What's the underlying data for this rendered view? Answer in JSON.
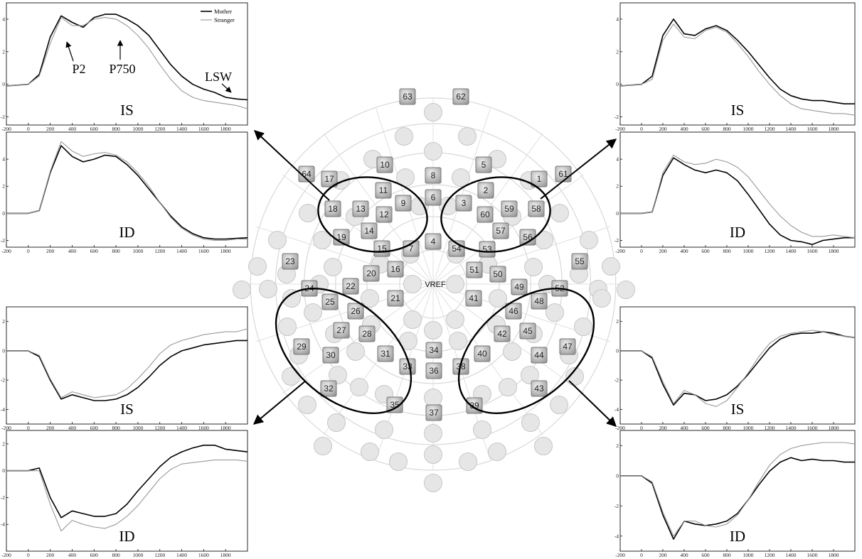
{
  "x_ticks": [
    "-200",
    "0",
    "200",
    "400",
    "600",
    "800",
    "1000",
    "1200",
    "1400",
    "1600",
    "1800"
  ],
  "legend": {
    "mother": "Mother",
    "stranger": "Stranger"
  },
  "annotations": {
    "p2": "P2",
    "p750": "P750",
    "lsw": "LSW"
  },
  "reference_label": "VREF",
  "electrode_labels": [
    "1",
    "2",
    "3",
    "4",
    "5",
    "6",
    "7",
    "8",
    "9",
    "10",
    "11",
    "12",
    "13",
    "14",
    "15",
    "16",
    "17",
    "18",
    "19",
    "20",
    "21",
    "22",
    "23",
    "24",
    "25",
    "26",
    "27",
    "28",
    "29",
    "30",
    "31",
    "32",
    "33",
    "34",
    "35",
    "36",
    "37",
    "38",
    "39",
    "40",
    "41",
    "42",
    "43",
    "44",
    "45",
    "46",
    "47",
    "48",
    "49",
    "50",
    "51",
    "52",
    "53",
    "54",
    "55",
    "56",
    "57",
    "58",
    "59",
    "60",
    "61",
    "62",
    "63",
    "64"
  ],
  "chart_data": [
    {
      "type": "line",
      "panel": "upper-left IS",
      "title": "IS",
      "xlim": [
        -200,
        2000
      ],
      "ylim": [
        -2.5,
        5
      ],
      "y_ticks": [
        -2,
        0,
        2,
        4
      ],
      "x": [
        -200,
        0,
        100,
        200,
        300,
        400,
        500,
        600,
        700,
        800,
        900,
        1000,
        1100,
        1200,
        1300,
        1400,
        1500,
        1600,
        1700,
        1800,
        1900,
        2000
      ],
      "series": [
        {
          "name": "Mother",
          "values": [
            -0.1,
            0,
            0.6,
            2.9,
            4.2,
            3.8,
            3.5,
            4.1,
            4.3,
            4.3,
            4.0,
            3.6,
            3.0,
            2.1,
            1.2,
            0.5,
            0.0,
            -0.3,
            -0.5,
            -0.8,
            -0.9,
            -0.95
          ]
        },
        {
          "name": "Stranger",
          "values": [
            -0.1,
            0,
            0.5,
            2.5,
            4.1,
            3.6,
            3.6,
            4.0,
            4.1,
            4.0,
            3.6,
            3.0,
            2.2,
            1.2,
            0.3,
            -0.4,
            -0.8,
            -1.0,
            -1.1,
            -1.2,
            -1.3,
            -1.5
          ]
        }
      ]
    },
    {
      "type": "line",
      "panel": "upper-left ID",
      "title": "ID",
      "xlim": [
        -200,
        2000
      ],
      "ylim": [
        -2.5,
        6
      ],
      "y_ticks": [
        -2,
        0,
        2,
        4
      ],
      "x": [
        -200,
        0,
        100,
        200,
        300,
        400,
        500,
        600,
        700,
        800,
        900,
        1000,
        1100,
        1200,
        1300,
        1400,
        1500,
        1600,
        1700,
        1800,
        1900,
        2000
      ],
      "series": [
        {
          "name": "Mother",
          "values": [
            0,
            0,
            0.2,
            3.0,
            5.0,
            4.2,
            3.8,
            4.0,
            4.3,
            4.2,
            3.6,
            2.8,
            1.8,
            0.8,
            -0.2,
            -1.0,
            -1.5,
            -1.8,
            -1.9,
            -1.9,
            -1.85,
            -1.8
          ]
        },
        {
          "name": "Stranger",
          "values": [
            0,
            0,
            0.2,
            3.1,
            5.3,
            4.6,
            4.2,
            4.4,
            4.5,
            4.3,
            3.8,
            3.0,
            2.0,
            0.8,
            -0.3,
            -1.1,
            -1.6,
            -1.9,
            -2.0,
            -2.0,
            -1.9,
            -1.9
          ]
        }
      ]
    },
    {
      "type": "line",
      "panel": "upper-right IS",
      "title": "IS",
      "xlim": [
        -200,
        2000
      ],
      "ylim": [
        -2.5,
        5
      ],
      "y_ticks": [
        -2,
        0,
        2,
        4
      ],
      "x": [
        -200,
        0,
        100,
        200,
        300,
        400,
        500,
        600,
        700,
        800,
        900,
        1000,
        1100,
        1200,
        1300,
        1400,
        1500,
        1600,
        1700,
        1800,
        1900,
        2000
      ],
      "series": [
        {
          "name": "Mother",
          "values": [
            -0.1,
            0,
            0.5,
            3.0,
            4.0,
            3.1,
            3.0,
            3.4,
            3.6,
            3.3,
            2.7,
            2.0,
            1.2,
            0.4,
            -0.3,
            -0.7,
            -0.9,
            -1.0,
            -1.0,
            -1.1,
            -1.2,
            -1.2
          ]
        },
        {
          "name": "Stranger",
          "values": [
            -0.1,
            0,
            0.3,
            2.7,
            3.7,
            2.9,
            2.8,
            3.3,
            3.5,
            3.2,
            2.5,
            1.7,
            0.8,
            0.0,
            -0.7,
            -1.2,
            -1.5,
            -1.6,
            -1.7,
            -1.8,
            -1.8,
            -1.9
          ]
        }
      ]
    },
    {
      "type": "line",
      "panel": "upper-right ID",
      "title": "ID",
      "xlim": [
        -200,
        2000
      ],
      "ylim": [
        -2.5,
        6
      ],
      "y_ticks": [
        -2,
        0,
        2,
        4
      ],
      "x": [
        -200,
        0,
        100,
        200,
        300,
        400,
        500,
        600,
        700,
        800,
        900,
        1000,
        1100,
        1200,
        1300,
        1400,
        1500,
        1600,
        1700,
        1800,
        1900,
        2000
      ],
      "series": [
        {
          "name": "Mother",
          "values": [
            0,
            0,
            0.1,
            2.8,
            4.1,
            3.6,
            3.2,
            3.0,
            3.2,
            3.0,
            2.4,
            1.4,
            0.3,
            -0.8,
            -1.6,
            -2.0,
            -2.1,
            -2.3,
            -2.0,
            -1.9,
            -1.8,
            -1.8
          ]
        },
        {
          "name": "Stranger",
          "values": [
            0,
            0,
            0.1,
            3.0,
            4.3,
            3.8,
            3.6,
            3.7,
            4.0,
            3.8,
            3.4,
            2.7,
            1.7,
            0.7,
            -0.2,
            -0.9,
            -1.4,
            -1.7,
            -1.7,
            -1.6,
            -1.7,
            -1.8
          ]
        }
      ]
    },
    {
      "type": "line",
      "panel": "lower-left IS",
      "title": "IS",
      "xlim": [
        -200,
        2000
      ],
      "ylim": [
        -5,
        3
      ],
      "y_ticks": [
        -4,
        -2,
        0,
        2
      ],
      "x": [
        -200,
        0,
        100,
        200,
        300,
        400,
        500,
        600,
        700,
        800,
        900,
        1000,
        1100,
        1200,
        1300,
        1400,
        1500,
        1600,
        1700,
        1800,
        1900,
        2000
      ],
      "series": [
        {
          "name": "Mother",
          "values": [
            0,
            0,
            -0.4,
            -2.0,
            -3.3,
            -3.0,
            -3.2,
            -3.4,
            -3.4,
            -3.3,
            -3.0,
            -2.5,
            -1.8,
            -1.0,
            -0.4,
            0,
            0.2,
            0.4,
            0.5,
            0.6,
            0.7,
            0.7
          ]
        },
        {
          "name": "Stranger",
          "values": [
            0,
            0,
            -0.3,
            -1.9,
            -3.2,
            -2.8,
            -3.0,
            -3.2,
            -3.1,
            -3.0,
            -2.6,
            -1.9,
            -1.1,
            -0.2,
            0.4,
            0.7,
            0.9,
            1.1,
            1.2,
            1.3,
            1.3,
            1.5
          ]
        }
      ]
    },
    {
      "type": "line",
      "panel": "lower-left ID",
      "title": "ID",
      "xlim": [
        -200,
        2000
      ],
      "ylim": [
        -6,
        3
      ],
      "y_ticks": [
        -4,
        -2,
        0,
        2
      ],
      "x": [
        -200,
        0,
        100,
        200,
        300,
        400,
        500,
        600,
        700,
        800,
        900,
        1000,
        1100,
        1200,
        1300,
        1400,
        1500,
        1600,
        1700,
        1800,
        1900,
        2000
      ],
      "series": [
        {
          "name": "Mother",
          "values": [
            0,
            0,
            0.2,
            -2.0,
            -3.5,
            -3.0,
            -3.2,
            -3.4,
            -3.4,
            -3.2,
            -2.5,
            -1.5,
            -0.6,
            0.3,
            1.0,
            1.4,
            1.7,
            1.9,
            1.9,
            1.6,
            1.5,
            1.4
          ]
        },
        {
          "name": "Stranger",
          "values": [
            0,
            0,
            0,
            -2.5,
            -4.5,
            -3.7,
            -4.0,
            -4.2,
            -4.3,
            -4.0,
            -3.4,
            -2.6,
            -1.6,
            -0.6,
            0.1,
            0.5,
            0.6,
            0.7,
            0.8,
            0.8,
            0.8,
            0.7
          ]
        }
      ]
    },
    {
      "type": "line",
      "panel": "lower-right IS",
      "title": "IS",
      "xlim": [
        -200,
        2000
      ],
      "ylim": [
        -5,
        3
      ],
      "y_ticks": [
        -4,
        -2,
        0,
        2
      ],
      "x": [
        -200,
        0,
        100,
        200,
        300,
        400,
        500,
        600,
        700,
        800,
        900,
        1000,
        1100,
        1200,
        1300,
        1400,
        1500,
        1600,
        1700,
        1800,
        1900,
        2000
      ],
      "series": [
        {
          "name": "Mother",
          "values": [
            0,
            0,
            -0.5,
            -2.3,
            -3.7,
            -2.9,
            -3.0,
            -3.4,
            -3.3,
            -3.0,
            -2.4,
            -1.6,
            -0.7,
            0.2,
            0.8,
            1.1,
            1.2,
            1.2,
            1.3,
            1.2,
            1.0,
            0.9
          ]
        },
        {
          "name": "Stranger",
          "values": [
            0,
            0,
            -0.4,
            -2.1,
            -3.6,
            -2.7,
            -3.0,
            -3.6,
            -3.8,
            -3.4,
            -2.5,
            -1.5,
            -0.4,
            0.5,
            1.0,
            1.2,
            1.3,
            1.4,
            1.3,
            1.1,
            1.0,
            0.9
          ]
        }
      ]
    },
    {
      "type": "line",
      "panel": "lower-right ID",
      "title": "ID",
      "xlim": [
        -200,
        2000
      ],
      "ylim": [
        -5,
        3
      ],
      "y_ticks": [
        -4,
        -2,
        0,
        2
      ],
      "x": [
        -200,
        0,
        100,
        200,
        300,
        400,
        500,
        600,
        700,
        800,
        900,
        1000,
        1100,
        1200,
        1300,
        1400,
        1500,
        1600,
        1700,
        1800,
        1900,
        2000
      ],
      "series": [
        {
          "name": "Mother",
          "values": [
            0,
            0,
            -0.5,
            -2.6,
            -4.2,
            -3.0,
            -3.2,
            -3.3,
            -3.2,
            -3.0,
            -2.5,
            -1.6,
            -0.6,
            0.3,
            0.9,
            1.2,
            1.0,
            1.1,
            1.0,
            1.0,
            0.9,
            0.9
          ]
        },
        {
          "name": "Stranger",
          "values": [
            0,
            0,
            -0.4,
            -2.4,
            -4.0,
            -3.0,
            -3.0,
            -3.3,
            -3.4,
            -3.2,
            -2.6,
            -1.6,
            -0.4,
            0.7,
            1.4,
            1.8,
            2.0,
            2.1,
            2.2,
            2.2,
            2.2,
            2.1
          ]
        }
      ]
    }
  ]
}
